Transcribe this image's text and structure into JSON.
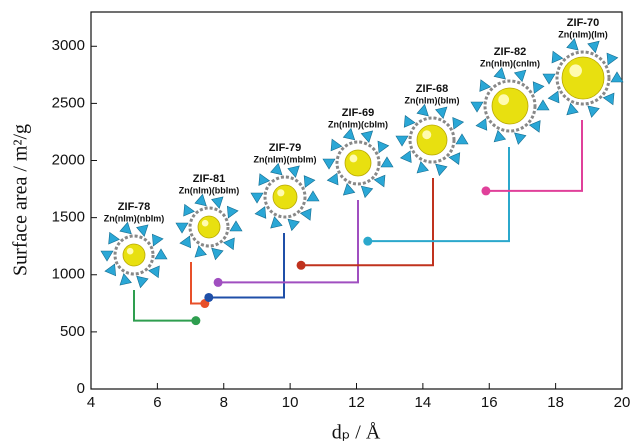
{
  "chart_data": {
    "type": "scatter",
    "xlabel": "dₚ / Å",
    "ylabel": "Surface area / m²/g",
    "xlim": [
      4,
      20
    ],
    "xticks": [
      4,
      6,
      8,
      10,
      12,
      14,
      16,
      18,
      20
    ],
    "ylim": [
      0,
      3300
    ],
    "yticks": [
      0,
      500,
      1000,
      1500,
      2000,
      2500,
      3000
    ],
    "series": [
      {
        "name": "ZIF-78",
        "formula": "Zn(nIm)(nbIm)",
        "color": "#2e9e4f",
        "x": [
          7.16
        ],
        "values": [
          598
        ]
      },
      {
        "name": "ZIF-81",
        "formula": "Zn(nIm)(bbIm)",
        "color": "#e8502a",
        "x": [
          7.43
        ],
        "values": [
          748
        ]
      },
      {
        "name": "ZIF-79",
        "formula": "Zn(nIm)(mbIm)",
        "color": "#1f4fa8",
        "x": [
          7.55
        ],
        "values": [
          801
        ]
      },
      {
        "name": "ZIF-69",
        "formula": "Zn(nIm)(cbIm)",
        "color": "#a04fc0",
        "x": [
          7.83
        ],
        "values": [
          933
        ]
      },
      {
        "name": "ZIF-68",
        "formula": "Zn(nIm)(bIm)",
        "color": "#c0321e",
        "x": [
          10.33
        ],
        "values": [
          1083
        ]
      },
      {
        "name": "ZIF-82",
        "formula": "Zn(nIm)(cnIm)",
        "color": "#2ba8cc",
        "x": [
          12.34
        ],
        "values": [
          1294
        ]
      },
      {
        "name": "ZIF-70",
        "formula": "Zn(nIm)(Im)",
        "color": "#e0409a",
        "x": [
          15.9
        ],
        "values": [
          1734
        ]
      }
    ]
  }
}
